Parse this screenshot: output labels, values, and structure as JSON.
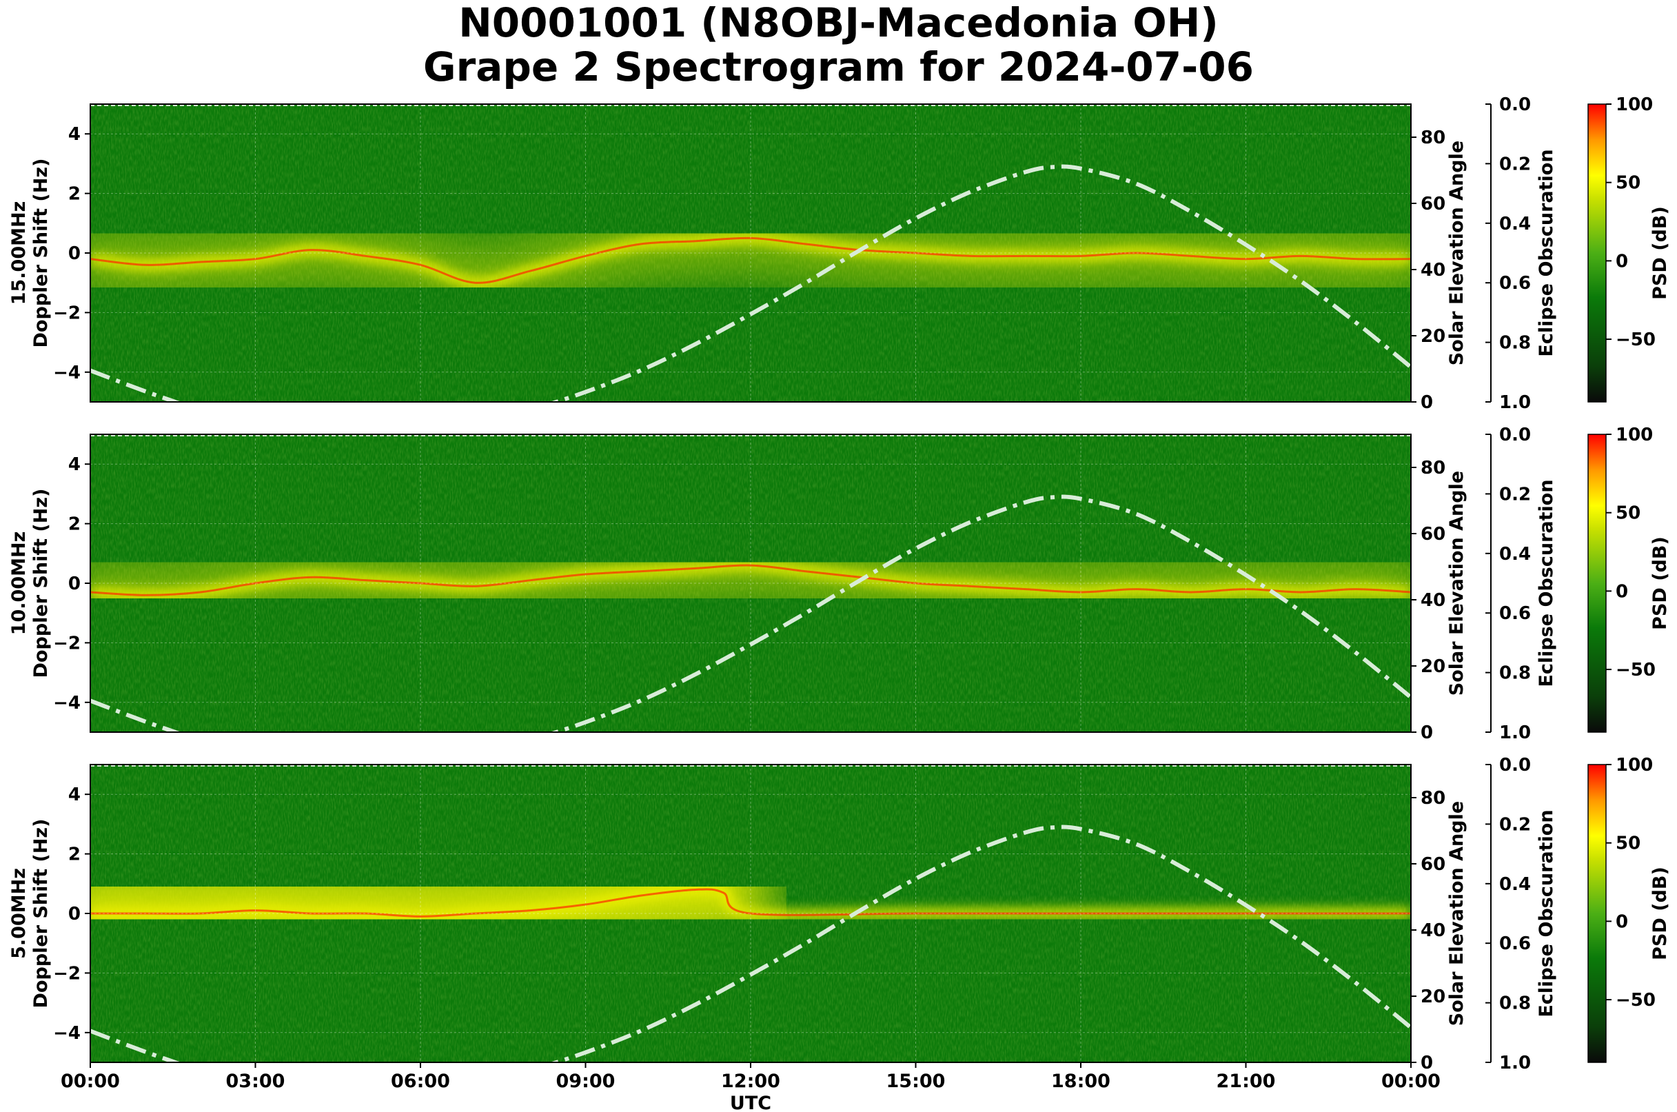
{
  "title": {
    "line1": "N0001001 (N8OBJ-Macedonia OH)",
    "line2": "Grape 2 Spectrogram for 2024-07-06"
  },
  "colors": {
    "background_green": "#0c7a0a",
    "signal_yellow": "#f2f200",
    "signal_red": "#ff2a00",
    "curve_color": "#d8ecd8",
    "colormap": [
      "#0a0a0a",
      "#0b3f0a",
      "#0b7a0a",
      "#4caf15",
      "#c8e000",
      "#ffff00",
      "#ff9900",
      "#ff0000"
    ]
  },
  "chart_data": {
    "type": "heatmap",
    "xlabel": "UTC",
    "x_ticks": [
      "00:00",
      "03:00",
      "06:00",
      "09:00",
      "12:00",
      "15:00",
      "18:00",
      "21:00",
      "00:00"
    ],
    "xlim_hours": [
      0,
      24
    ],
    "ylabel": "Doppler Shift (Hz)",
    "ylim": [
      -5,
      5
    ],
    "y_ticks": [
      "−4",
      "−2",
      "0",
      "2",
      "4"
    ],
    "secondary_y": {
      "label": "Solar Elevation Angle",
      "ylim": [
        0,
        90
      ],
      "ticks": [
        "0",
        "20",
        "40",
        "60",
        "80"
      ]
    },
    "eclipse_axis": {
      "label": "Eclipse Obscuration",
      "ylim": [
        1.0,
        0.0
      ],
      "ticks": [
        "0.0",
        "0.2",
        "0.4",
        "0.6",
        "0.8",
        "1.0"
      ]
    },
    "colorbar": {
      "label": "PSD (dB)",
      "range": [
        -90,
        100
      ],
      "ticks": [
        "100",
        "50",
        "0",
        "−50"
      ]
    },
    "solar_elevation_curve": {
      "style": "dash-dot",
      "x_hours": [
        0,
        1,
        2,
        3,
        4,
        5,
        6,
        7,
        8,
        9,
        10,
        11,
        12,
        13,
        14,
        15,
        16,
        17,
        17.5,
        18,
        19,
        20,
        21,
        22,
        23,
        24
      ],
      "elevation_deg": [
        9.5,
        3.2,
        -2.5,
        -7.2,
        -10.5,
        -12.0,
        -11.2,
        -7.8,
        -2.5,
        3.0,
        9.5,
        17.5,
        26.5,
        36.0,
        46.0,
        55.5,
        63.5,
        69.5,
        71.0,
        70.5,
        66.0,
        57.5,
        47.5,
        36.5,
        24.0,
        10.5
      ]
    },
    "panels": [
      {
        "frequency_label": "15.00MHz",
        "signal_trace": {
          "x_hours": [
            0,
            1,
            2,
            3,
            4,
            5,
            6,
            7,
            8,
            9,
            10,
            11,
            12,
            13,
            14,
            15,
            16,
            17,
            18,
            19,
            20,
            21,
            22,
            23,
            24
          ],
          "doppler_hz": [
            -0.2,
            -0.4,
            -0.3,
            -0.2,
            0.1,
            -0.1,
            -0.4,
            -1.0,
            -0.6,
            -0.1,
            0.3,
            0.4,
            0.5,
            0.3,
            0.1,
            0.0,
            -0.1,
            -0.1,
            -0.1,
            0.0,
            -0.1,
            -0.2,
            -0.1,
            -0.2,
            -0.2
          ]
        }
      },
      {
        "frequency_label": "10.00MHz",
        "signal_trace": {
          "x_hours": [
            0,
            1,
            2,
            3,
            4,
            5,
            6,
            7,
            8,
            9,
            10,
            11,
            12,
            13,
            14,
            15,
            16,
            17,
            18,
            19,
            20,
            21,
            22,
            23,
            24
          ],
          "doppler_hz": [
            -0.3,
            -0.4,
            -0.3,
            0.0,
            0.2,
            0.1,
            0.0,
            -0.1,
            0.1,
            0.3,
            0.4,
            0.5,
            0.6,
            0.4,
            0.2,
            0.0,
            -0.1,
            -0.2,
            -0.3,
            -0.2,
            -0.3,
            -0.2,
            -0.3,
            -0.2,
            -0.3
          ]
        }
      },
      {
        "frequency_label": "5.00MHz",
        "signal_trace": {
          "x_hours": [
            0,
            1,
            2,
            3,
            4,
            5,
            6,
            7,
            8,
            9,
            10,
            11,
            11.5,
            12,
            15,
            18,
            21,
            24
          ],
          "doppler_hz": [
            0.0,
            0.0,
            0.0,
            0.1,
            0.0,
            0.0,
            -0.1,
            0.0,
            0.1,
            0.3,
            0.6,
            0.8,
            0.7,
            0.0,
            0.0,
            0.0,
            0.0,
            0.0
          ]
        }
      }
    ]
  }
}
